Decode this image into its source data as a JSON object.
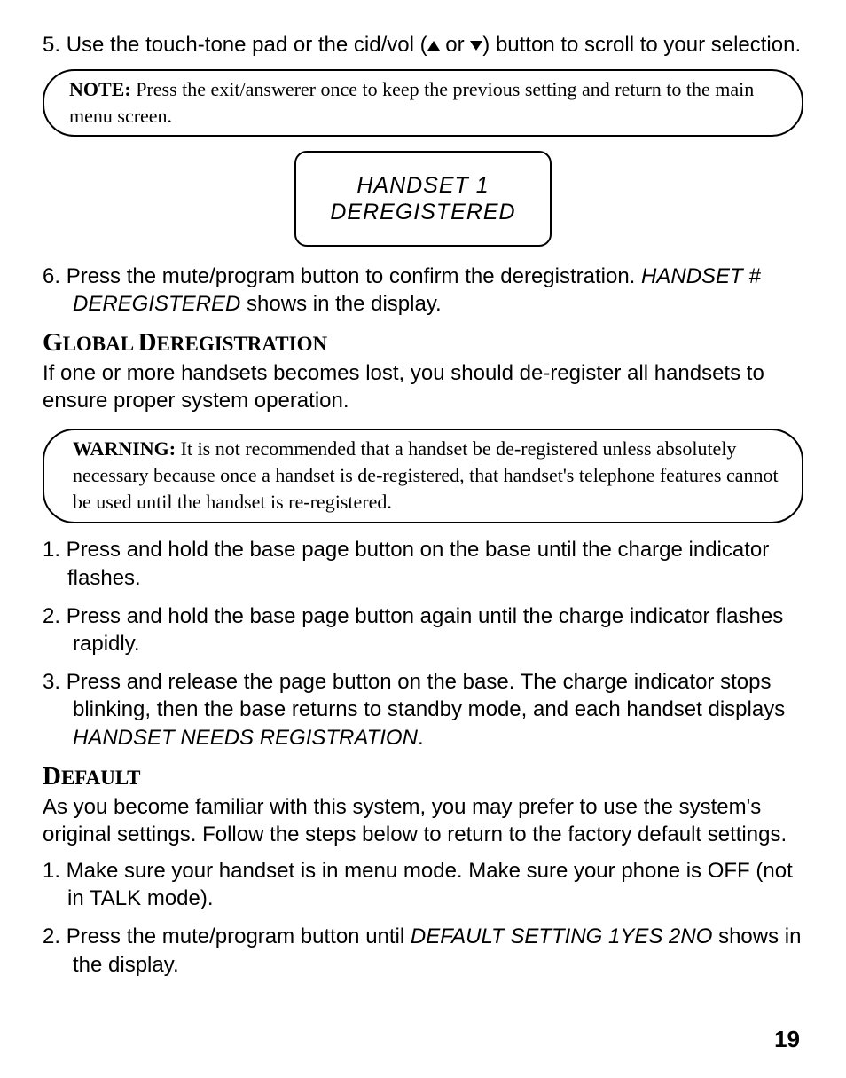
{
  "step5": {
    "num": "5.",
    "text_a": "Use the touch-tone pad or the cid/vol (",
    "text_b": " or ",
    "text_c": ") button to scroll to your selection."
  },
  "note1": {
    "label": "NOTE:",
    "text": " Press the exit/answerer once to keep the previous setting and return to the main menu screen."
  },
  "lcd": {
    "line1": "HANDSET 1",
    "line2": "DEREGISTERED"
  },
  "step6": {
    "num": "6.",
    "text_a": "Press the mute/program button to confirm the deregistration. ",
    "italic": "HANDSET # DEREGISTERED",
    "text_b": " shows in the display."
  },
  "global_heading": "GLOBAL DEREGISTRATION",
  "global_para": "If one or more handsets becomes lost, you should de-register all handsets to ensure proper system operation.",
  "warning": {
    "label": "WARNING:",
    "text": " It is not recommended that a handset be de-registered unless absolutely necessary because once a handset is de-registered, that handset's telephone features cannot be used  until the handset  is re-registered."
  },
  "g1": {
    "num": "1.",
    "text": " Press and hold the base page button on the base until the charge indicator flashes."
  },
  "g2": {
    "num": "2.",
    "text": "Press and hold the base page button again until the charge indicator flashes rapidly."
  },
  "g3": {
    "num": "3.",
    "text_a": "Press and release the page button on the base. The charge indicator stops blinking, then the base returns to standby mode, and each handset displays ",
    "italic": "HANDSET NEEDS REGISTRATION",
    "text_b": "."
  },
  "default_heading": "DEFAULT",
  "default_para": "As you become familiar with this system, you may prefer to use the system's original settings. Follow the steps below to return to the factory default settings.",
  "d1": {
    "num": "1.",
    "text": " Make sure your handset is in menu mode. Make sure your phone is OFF (not in TALK mode)."
  },
  "d2": {
    "num": "2.",
    "text_a": "Press the mute/program button until ",
    "italic": "DEFAULT SETTING 1YES 2NO",
    "text_b": " shows in the display."
  },
  "page_number": "19"
}
